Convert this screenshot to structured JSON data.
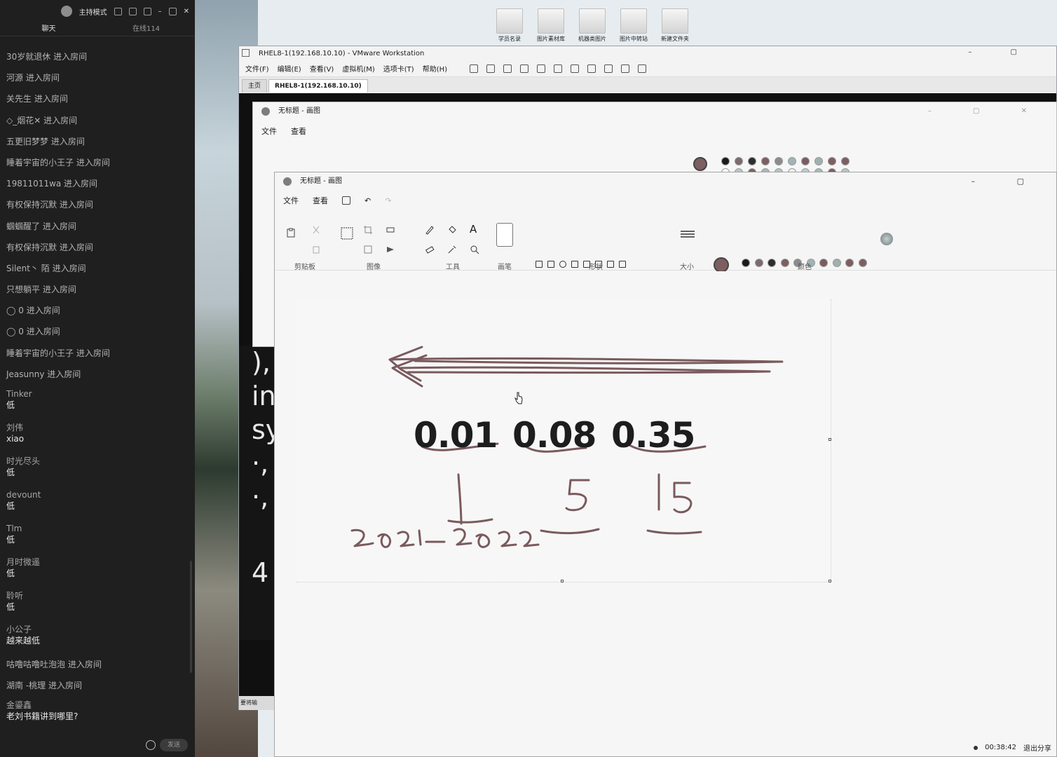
{
  "live": {
    "host_mode": "主持模式",
    "tabs": [
      "聊天",
      "在线114"
    ],
    "messages": [
      {
        "type": "enter",
        "text": "30岁就退休 进入房间"
      },
      {
        "type": "enter",
        "text": "河源 进入房间"
      },
      {
        "type": "enter",
        "text": "关先生 进入房间"
      },
      {
        "type": "enter",
        "text": "◇_烟花✕   进入房间"
      },
      {
        "type": "enter",
        "text": "五更旧梦梦 进入房间"
      },
      {
        "type": "enter",
        "text": "睡着宇宙的小王子 进入房间"
      },
      {
        "type": "enter",
        "text": "19811011wa 进入房间"
      },
      {
        "type": "enter",
        "text": "有权保持沉默 进入房间"
      },
      {
        "type": "enter",
        "text": "蝈蝈醒了 进入房间"
      },
      {
        "type": "enter",
        "text": "有权保持沉默 进入房间"
      },
      {
        "type": "enter",
        "text": "Silent丶 陌 进入房间"
      },
      {
        "type": "enter",
        "text": "只想躺平 进入房间"
      },
      {
        "type": "enter",
        "text": "◯ 0 进入房间"
      },
      {
        "type": "enter",
        "text": "◯ 0 进入房间"
      },
      {
        "type": "enter",
        "text": "睡着宇宙的小王子 进入房间"
      },
      {
        "type": "enter",
        "text": "Jeasunny 进入房间"
      },
      {
        "type": "chat",
        "user": "Tinker",
        "text": "低"
      },
      {
        "type": "chat",
        "user": "刘伟",
        "text": "xiao"
      },
      {
        "type": "chat",
        "user": "时光尽头",
        "text": "低"
      },
      {
        "type": "chat",
        "user": "devount",
        "text": "低"
      },
      {
        "type": "chat",
        "user": "Tlm",
        "text": "低"
      },
      {
        "type": "chat",
        "user": "月时微遥",
        "text": "低"
      },
      {
        "type": "chat",
        "user": "聆听",
        "text": "低"
      },
      {
        "type": "chat",
        "user": "小公子",
        "text": "越来越低"
      },
      {
        "type": "enter",
        "text": "咕噜咕噜吐泡泡 进入房间"
      },
      {
        "type": "enter",
        "text": "湖南 -桃理 进入房间"
      },
      {
        "type": "chat",
        "user": "金鎏鑫",
        "text": "老刘书籍讲到哪里?"
      }
    ],
    "send_label": "发送"
  },
  "desktop": {
    "icons": [
      "学员名录",
      "图片素材库",
      "机器类图片",
      "图片中转站",
      "新建文件夹"
    ]
  },
  "vmware": {
    "title": "RHEL8-1(192.168.10.10) - VMware Workstation",
    "window_controls": "– ▢",
    "menu": [
      "文件(F)",
      "编辑(E)",
      "查看(V)",
      "虚拟机(M)",
      "选项卡(T)",
      "帮助(H)"
    ],
    "tabs": [
      "主页",
      "RHEL8-1(192.168.10.10)"
    ],
    "guest_text": [
      "),",
      "in",
      "sy",
      "·,",
      "·,"
    ],
    "guest_bottom": "4",
    "status_text": "要将输"
  },
  "paint_back": {
    "title": "无标题 - 画图",
    "menu": [
      "文件",
      "查看"
    ],
    "window_controls": "– ▢ ✕"
  },
  "paint_front": {
    "title": "无标题 - 画图",
    "menu": [
      "文件",
      "查看"
    ],
    "window_controls": "– ▢",
    "groups": [
      "剪贴板",
      "图像",
      "工具",
      "画笔",
      "形状",
      "大小",
      "颜色"
    ],
    "primary_color": "#7d5e61",
    "secondary_color": "#ffffff",
    "palette": [
      "#1a1a1a",
      "#7d6a6c",
      "#2d2d2d",
      "#7d5e61",
      "#8c8c8c",
      "#9fb5b5",
      "#7b5b60",
      "#9fb0b0",
      "#7d5e61",
      "#7d5e61",
      "#ffffff",
      "#b8c6c6",
      "#7d5e61",
      "#a8b9b9",
      "#b6c4c4",
      "#f0f0f0",
      "#c0cccc",
      "#a8b8b8",
      "#7d5e61",
      "#b7c5c5"
    ],
    "canvas": {
      "numbers": [
        "0.01",
        "0.08",
        "0.35"
      ],
      "handwriting": [
        "1",
        "5",
        "15",
        "2021-2022"
      ]
    }
  },
  "status": {
    "timer": "00:38:42",
    "exit_share": "退出分享"
  }
}
